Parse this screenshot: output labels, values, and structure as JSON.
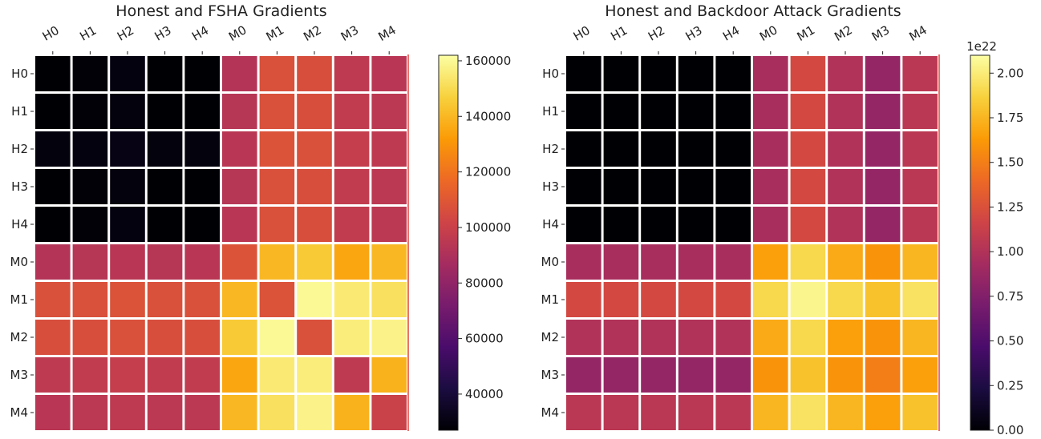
{
  "colormap": {
    "name": "inferno",
    "stops": [
      "#000004",
      "#1b0c41",
      "#4a0c6b",
      "#781c6d",
      "#a52c60",
      "#cf4446",
      "#ed6925",
      "#fb9b06",
      "#f7d13d",
      "#fcffa4"
    ]
  },
  "chart_data": [
    {
      "type": "heatmap",
      "title": "Honest and FSHA Gradients",
      "xlabel": "",
      "ylabel": "",
      "x_categories": [
        "H0",
        "H1",
        "H2",
        "H3",
        "H4",
        "M0",
        "M1",
        "M2",
        "M3",
        "M4"
      ],
      "y_categories": [
        "H0",
        "H1",
        "H2",
        "H3",
        "H4",
        "M0",
        "M1",
        "M2",
        "M3",
        "M4"
      ],
      "vmin": 27000,
      "vmax": 162000,
      "colorbar_ticks": [
        40000,
        60000,
        80000,
        100000,
        120000,
        140000,
        160000
      ],
      "colorbar_tick_labels": [
        "40000",
        "60000",
        "80000",
        "100000",
        "120000",
        "140000",
        "160000"
      ],
      "colorbar_offset_label": "",
      "values": [
        [
          27000,
          28000,
          30000,
          27000,
          27000,
          92000,
          107000,
          106000,
          96000,
          94000
        ],
        [
          27000,
          28000,
          29000,
          27000,
          27000,
          93000,
          107000,
          106000,
          97000,
          95000
        ],
        [
          29000,
          30000,
          31000,
          29000,
          29000,
          94000,
          108000,
          107000,
          98000,
          96000
        ],
        [
          27000,
          28000,
          29000,
          27000,
          27000,
          93000,
          107000,
          106000,
          97000,
          95000
        ],
        [
          27000,
          28000,
          30000,
          27000,
          27000,
          94000,
          107000,
          106000,
          97000,
          95000
        ],
        [
          92000,
          93000,
          94000,
          93000,
          94000,
          108000,
          140000,
          145000,
          135000,
          140000
        ],
        [
          107000,
          107000,
          108000,
          107000,
          107000,
          140000,
          108000,
          160000,
          155000,
          152000
        ],
        [
          106000,
          106000,
          107000,
          106000,
          106000,
          145000,
          160000,
          107000,
          156000,
          158000
        ],
        [
          96000,
          97000,
          98000,
          97000,
          97000,
          135000,
          155000,
          156000,
          96000,
          138000
        ],
        [
          94000,
          95000,
          96000,
          95000,
          95000,
          140000,
          152000,
          158000,
          138000,
          100000
        ]
      ]
    },
    {
      "type": "heatmap",
      "title": "Honest and Backdoor Attack Gradients",
      "xlabel": "",
      "ylabel": "",
      "x_categories": [
        "H0",
        "H1",
        "H2",
        "H3",
        "H4",
        "M0",
        "M1",
        "M2",
        "M3",
        "M4"
      ],
      "y_categories": [
        "H0",
        "H1",
        "H2",
        "H3",
        "H4",
        "M0",
        "M1",
        "M2",
        "M3",
        "M4"
      ],
      "vmin": 0,
      "vmax": 2.1,
      "colorbar_ticks": [
        0,
        0.25,
        0.5,
        0.75,
        1.0,
        1.25,
        1.5,
        1.75,
        2.0
      ],
      "colorbar_tick_labels": [
        "0.00",
        "0.25",
        "0.50",
        "0.75",
        "1.00",
        "1.25",
        "1.50",
        "1.75",
        "2.00"
      ],
      "colorbar_offset_label": "1e22",
      "values": [
        [
          0,
          0,
          0,
          0,
          0,
          0.95,
          1.2,
          1.0,
          0.85,
          1.05
        ],
        [
          0,
          0,
          0,
          0,
          0,
          0.95,
          1.2,
          1.0,
          0.85,
          1.05
        ],
        [
          0,
          0,
          0,
          0,
          0,
          0.95,
          1.2,
          1.0,
          0.85,
          1.05
        ],
        [
          0,
          0,
          0,
          0,
          0,
          0.95,
          1.2,
          1.0,
          0.85,
          1.05
        ],
        [
          0,
          0,
          0,
          0,
          0,
          0.95,
          1.2,
          1.0,
          0.85,
          1.05
        ],
        [
          0.95,
          0.95,
          0.95,
          0.95,
          0.95,
          1.65,
          1.9,
          1.7,
          1.6,
          1.75
        ],
        [
          1.2,
          1.2,
          1.2,
          1.2,
          1.2,
          1.9,
          2.05,
          1.9,
          1.8,
          1.95
        ],
        [
          1.0,
          1.0,
          1.0,
          1.0,
          1.0,
          1.7,
          1.9,
          1.65,
          1.6,
          1.75
        ],
        [
          0.85,
          0.85,
          0.85,
          0.85,
          0.85,
          1.6,
          1.8,
          1.6,
          1.5,
          1.65
        ],
        [
          1.05,
          1.05,
          1.05,
          1.05,
          1.05,
          1.75,
          1.95,
          1.75,
          1.65,
          1.8
        ]
      ]
    }
  ]
}
